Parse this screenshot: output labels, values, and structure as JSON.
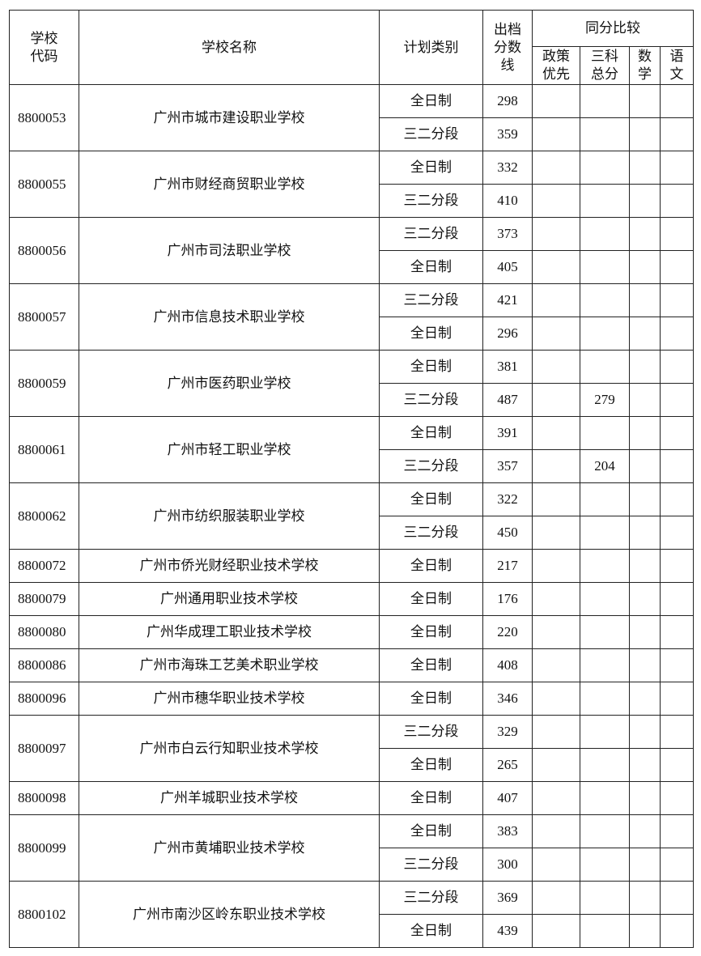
{
  "header": {
    "code": "学校代码",
    "code_lines": [
      "学校",
      "代码"
    ],
    "name": "学校名称",
    "plan": "计划类别",
    "score_lines": [
      "出档",
      "分数",
      "线"
    ],
    "compare": "同分比较",
    "policy_lines": [
      "政策",
      "优先"
    ],
    "total3_lines": [
      "三科",
      "总分"
    ],
    "math_lines": [
      "数",
      "学"
    ],
    "chinese_lines": [
      "语",
      "文"
    ]
  },
  "schools": [
    {
      "code": "8800053",
      "name": "广州市城市建设职业学校",
      "plans": [
        {
          "type": "全日制",
          "score": "298",
          "policy": "",
          "total3": "",
          "math": "",
          "chinese": ""
        },
        {
          "type": "三二分段",
          "score": "359",
          "policy": "",
          "total3": "",
          "math": "",
          "chinese": ""
        }
      ]
    },
    {
      "code": "8800055",
      "name": "广州市财经商贸职业学校",
      "plans": [
        {
          "type": "全日制",
          "score": "332",
          "policy": "",
          "total3": "",
          "math": "",
          "chinese": ""
        },
        {
          "type": "三二分段",
          "score": "410",
          "policy": "",
          "total3": "",
          "math": "",
          "chinese": ""
        }
      ]
    },
    {
      "code": "8800056",
      "name": "广州市司法职业学校",
      "plans": [
        {
          "type": "三二分段",
          "score": "373",
          "policy": "",
          "total3": "",
          "math": "",
          "chinese": ""
        },
        {
          "type": "全日制",
          "score": "405",
          "policy": "",
          "total3": "",
          "math": "",
          "chinese": ""
        }
      ]
    },
    {
      "code": "8800057",
      "name": "广州市信息技术职业学校",
      "plans": [
        {
          "type": "三二分段",
          "score": "421",
          "policy": "",
          "total3": "",
          "math": "",
          "chinese": ""
        },
        {
          "type": "全日制",
          "score": "296",
          "policy": "",
          "total3": "",
          "math": "",
          "chinese": ""
        }
      ]
    },
    {
      "code": "8800059",
      "name": "广州市医药职业学校",
      "plans": [
        {
          "type": "全日制",
          "score": "381",
          "policy": "",
          "total3": "",
          "math": "",
          "chinese": ""
        },
        {
          "type": "三二分段",
          "score": "487",
          "policy": "",
          "total3": "279",
          "math": "",
          "chinese": ""
        }
      ]
    },
    {
      "code": "8800061",
      "name": "广州市轻工职业学校",
      "plans": [
        {
          "type": "全日制",
          "score": "391",
          "policy": "",
          "total3": "",
          "math": "",
          "chinese": ""
        },
        {
          "type": "三二分段",
          "score": "357",
          "policy": "",
          "total3": "204",
          "math": "",
          "chinese": ""
        }
      ]
    },
    {
      "code": "8800062",
      "name": "广州市纺织服装职业学校",
      "plans": [
        {
          "type": "全日制",
          "score": "322",
          "policy": "",
          "total3": "",
          "math": "",
          "chinese": ""
        },
        {
          "type": "三二分段",
          "score": "450",
          "policy": "",
          "total3": "",
          "math": "",
          "chinese": ""
        }
      ]
    },
    {
      "code": "8800072",
      "name": "广州市侨光财经职业技术学校",
      "plans": [
        {
          "type": "全日制",
          "score": "217",
          "policy": "",
          "total3": "",
          "math": "",
          "chinese": ""
        }
      ]
    },
    {
      "code": "8800079",
      "name": "广州通用职业技术学校",
      "plans": [
        {
          "type": "全日制",
          "score": "176",
          "policy": "",
          "total3": "",
          "math": "",
          "chinese": ""
        }
      ]
    },
    {
      "code": "8800080",
      "name": "广州华成理工职业技术学校",
      "plans": [
        {
          "type": "全日制",
          "score": "220",
          "policy": "",
          "total3": "",
          "math": "",
          "chinese": ""
        }
      ]
    },
    {
      "code": "8800086",
      "name": "广州市海珠工艺美术职业学校",
      "plans": [
        {
          "type": "全日制",
          "score": "408",
          "policy": "",
          "total3": "",
          "math": "",
          "chinese": ""
        }
      ]
    },
    {
      "code": "8800096",
      "name": "广州市穗华职业技术学校",
      "plans": [
        {
          "type": "全日制",
          "score": "346",
          "policy": "",
          "total3": "",
          "math": "",
          "chinese": ""
        }
      ]
    },
    {
      "code": "8800097",
      "name": "广州市白云行知职业技术学校",
      "plans": [
        {
          "type": "三二分段",
          "score": "329",
          "policy": "",
          "total3": "",
          "math": "",
          "chinese": ""
        },
        {
          "type": "全日制",
          "score": "265",
          "policy": "",
          "total3": "",
          "math": "",
          "chinese": ""
        }
      ]
    },
    {
      "code": "8800098",
      "name": "广州羊城职业技术学校",
      "plans": [
        {
          "type": "全日制",
          "score": "407",
          "policy": "",
          "total3": "",
          "math": "",
          "chinese": ""
        }
      ]
    },
    {
      "code": "8800099",
      "name": "广州市黄埔职业技术学校",
      "plans": [
        {
          "type": "全日制",
          "score": "383",
          "policy": "",
          "total3": "",
          "math": "",
          "chinese": ""
        },
        {
          "type": "三二分段",
          "score": "300",
          "policy": "",
          "total3": "",
          "math": "",
          "chinese": ""
        }
      ]
    },
    {
      "code": "8800102",
      "name": "广州市南沙区岭东职业技术学校",
      "plans": [
        {
          "type": "三二分段",
          "score": "369",
          "policy": "",
          "total3": "",
          "math": "",
          "chinese": ""
        },
        {
          "type": "全日制",
          "score": "439",
          "policy": "",
          "total3": "",
          "math": "",
          "chinese": ""
        }
      ]
    }
  ]
}
